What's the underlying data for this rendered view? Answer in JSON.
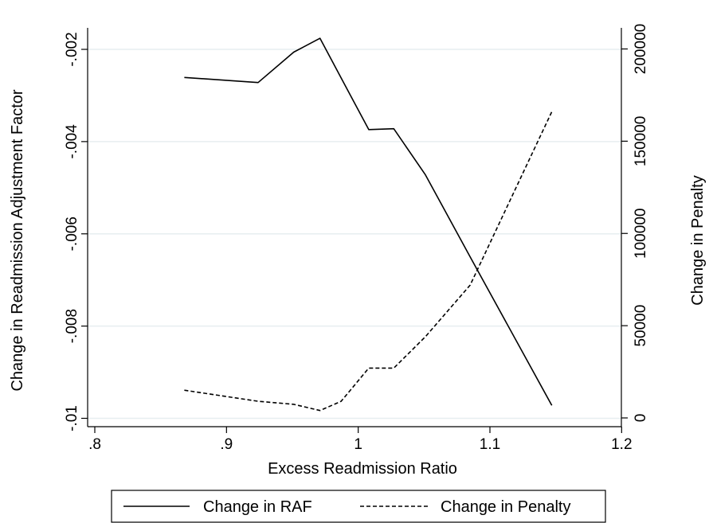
{
  "chart_data": {
    "type": "line",
    "xlabel": "Excess Readmission Ratio",
    "ylabel_left": "Change in Readmission Adjustment Factor",
    "ylabel_right": "Change in Penalty",
    "x_ticks": [
      {
        "value": 0.8,
        "label": ".8"
      },
      {
        "value": 0.9,
        "label": ".9"
      },
      {
        "value": 1.0,
        "label": "1"
      },
      {
        "value": 1.1,
        "label": "1.1"
      },
      {
        "value": 1.2,
        "label": "1.2"
      }
    ],
    "y_left_ticks": [
      {
        "value": -0.002,
        "label": "-.002"
      },
      {
        "value": -0.004,
        "label": "-.004"
      },
      {
        "value": -0.006,
        "label": "-.006"
      },
      {
        "value": -0.008,
        "label": "-.008"
      },
      {
        "value": -0.01,
        "label": "-.01"
      }
    ],
    "y_right_ticks": [
      {
        "value": 0,
        "label": "0"
      },
      {
        "value": 50000,
        "label": "50000"
      },
      {
        "value": 100000,
        "label": "100000"
      },
      {
        "value": 150000,
        "label": "150000"
      },
      {
        "value": 200000,
        "label": "200000"
      }
    ],
    "grid": true,
    "legend_position": "bottom",
    "series": [
      {
        "name": "Change in RAF",
        "axis": "left",
        "style": "solid",
        "x": [
          0.868,
          0.924,
          0.951,
          0.971,
          0.987,
          1.008,
          1.027,
          1.051,
          1.085,
          1.147
        ],
        "y": [
          -0.00261,
          -0.00272,
          -0.00206,
          -0.00176,
          -0.00262,
          -0.00374,
          -0.00372,
          -0.00472,
          -0.0065,
          -0.00972
        ]
      },
      {
        "name": "Change in Penalty",
        "axis": "right",
        "style": "dashed",
        "x": [
          0.868,
          0.924,
          0.951,
          0.971,
          0.987,
          1.008,
          1.027,
          1.051,
          1.085,
          1.147
        ],
        "y": [
          15000,
          9000,
          7400,
          4000,
          9000,
          27000,
          27000,
          44000,
          72000,
          166000
        ]
      }
    ]
  }
}
